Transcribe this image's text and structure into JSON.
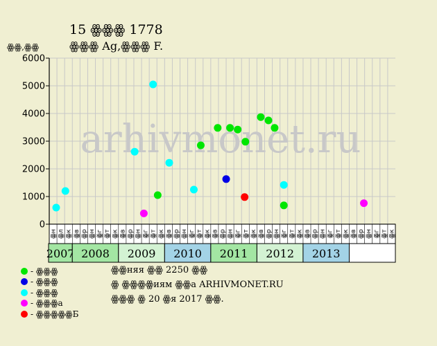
{
  "header": {
    "title": "15 ꙮꙮꙮ 1778",
    "subtitle": "ꙮꙮꙮ Ag,ꙮꙮꙮ F.",
    "y_unit": "ꙮꙮ,ꙮꙮ"
  },
  "legend": [
    {
      "label": "- ꙮꙮꙮ",
      "color": "#00e600"
    },
    {
      "label": "- ꙮꙮꙮ",
      "color": "#0000e6"
    },
    {
      "label": "- ꙮꙮꙮ",
      "color": "#00ffff"
    },
    {
      "label": "- ꙮꙮꙮа",
      "color": "#ff00ff"
    },
    {
      "label": "- ꙮꙮꙮꙮꙮБ",
      "color": "#ff0000"
    }
  ],
  "notes": [
    "ꙮꙮняя ꙮꙮ 2250 ꙮꙮ",
    "ꙮ ꙮꙮꙮꙮиям ꙮꙮа ARHIVMONET.RU",
    "ꙮꙮꙮ ꙮ 20 ꙮя 2017 ꙮꙮ."
  ],
  "watermark": "arhivmonet.ru",
  "colors": {
    "background": "#f0efd2",
    "grid": "#c8c8c8",
    "year_band_alt1": "#a3e6a3",
    "year_band_alt2": "#d3f2d3",
    "year_band_blue": "#a3d3e6",
    "watermark": "#c8c8c8"
  },
  "chart_data": {
    "type": "scatter",
    "ylim": [
      0,
      6000
    ],
    "yticks": [
      0,
      1000,
      2000,
      3000,
      4000,
      5000,
      6000
    ],
    "slots": [
      "ꙮн",
      "ꙮл",
      "ꙮк",
      "ꙮв",
      "ꙮр",
      "ꙮн",
      "ꙮг",
      "ꙮт",
      "ꙮк",
      "ꙮв",
      "ꙮр",
      "ꙮн",
      "ꙮг",
      "ꙮт",
      "ꙮк",
      "ꙮв",
      "ꙮр",
      "ꙮн",
      "ꙮг",
      "ꙮт",
      "ꙮк",
      "ꙮв",
      "ꙮр",
      "ꙮн",
      "ꙮг",
      "ꙮт",
      "ꙮк",
      "ꙮв",
      "ꙮр",
      "ꙮн",
      "ꙮг",
      "ꙮт",
      "ꙮк",
      "ꙮв",
      "ꙮр",
      "ꙮн",
      "ꙮг",
      "ꙮт",
      "ꙮк",
      "ꙮв",
      "ꙮр",
      "ꙮн",
      "ꙮг",
      "ꙮт",
      "ꙮк"
    ],
    "years": [
      {
        "label": "2007",
        "start": 0,
        "span": 3,
        "color": "#a3e6a3"
      },
      {
        "label": "2008",
        "start": 3,
        "span": 6,
        "color": "#a3e6a3"
      },
      {
        "label": "2009",
        "start": 9,
        "span": 6,
        "color": "#d3f2d3"
      },
      {
        "label": "2010",
        "start": 15,
        "span": 6,
        "color": "#a3d3e6"
      },
      {
        "label": "2011",
        "start": 21,
        "span": 6,
        "color": "#a3e6a3"
      },
      {
        "label": "2012",
        "start": 27,
        "span": 6,
        "color": "#d3f2d3"
      },
      {
        "label": "2013",
        "start": 33,
        "span": 6,
        "color": "#a3d3e6"
      }
    ],
    "series": [
      {
        "name": "ꙮꙮꙮ",
        "color": "#00e600",
        "points": [
          {
            "slot": 13.6,
            "y": 1050
          },
          {
            "slot": 19.2,
            "y": 2850
          },
          {
            "slot": 21.4,
            "y": 3480
          },
          {
            "slot": 23.0,
            "y": 3480
          },
          {
            "slot": 24.0,
            "y": 3420
          },
          {
            "slot": 25.0,
            "y": 2980
          },
          {
            "slot": 27.0,
            "y": 3870
          },
          {
            "slot": 28.0,
            "y": 3750
          },
          {
            "slot": 28.8,
            "y": 3480
          },
          {
            "slot": 30.0,
            "y": 680
          }
        ]
      },
      {
        "name": "ꙮꙮꙮ",
        "color": "#0000e6",
        "points": [
          {
            "slot": 22.5,
            "y": 1630
          }
        ]
      },
      {
        "name": "ꙮꙮꙮ",
        "color": "#00ffff",
        "points": [
          {
            "slot": 0.4,
            "y": 600
          },
          {
            "slot": 1.6,
            "y": 1200
          },
          {
            "slot": 10.6,
            "y": 2620
          },
          {
            "slot": 13.0,
            "y": 5050
          },
          {
            "slot": 15.1,
            "y": 2220
          },
          {
            "slot": 18.3,
            "y": 1250
          },
          {
            "slot": 30.0,
            "y": 1420
          }
        ]
      },
      {
        "name": "ꙮꙮꙮа",
        "color": "#ff00ff",
        "points": [
          {
            "slot": 11.8,
            "y": 390
          },
          {
            "slot": 40.4,
            "y": 760
          }
        ]
      },
      {
        "name": "ꙮꙮꙮꙮꙮБ",
        "color": "#ff0000",
        "points": [
          {
            "slot": 24.9,
            "y": 980
          }
        ]
      }
    ]
  }
}
